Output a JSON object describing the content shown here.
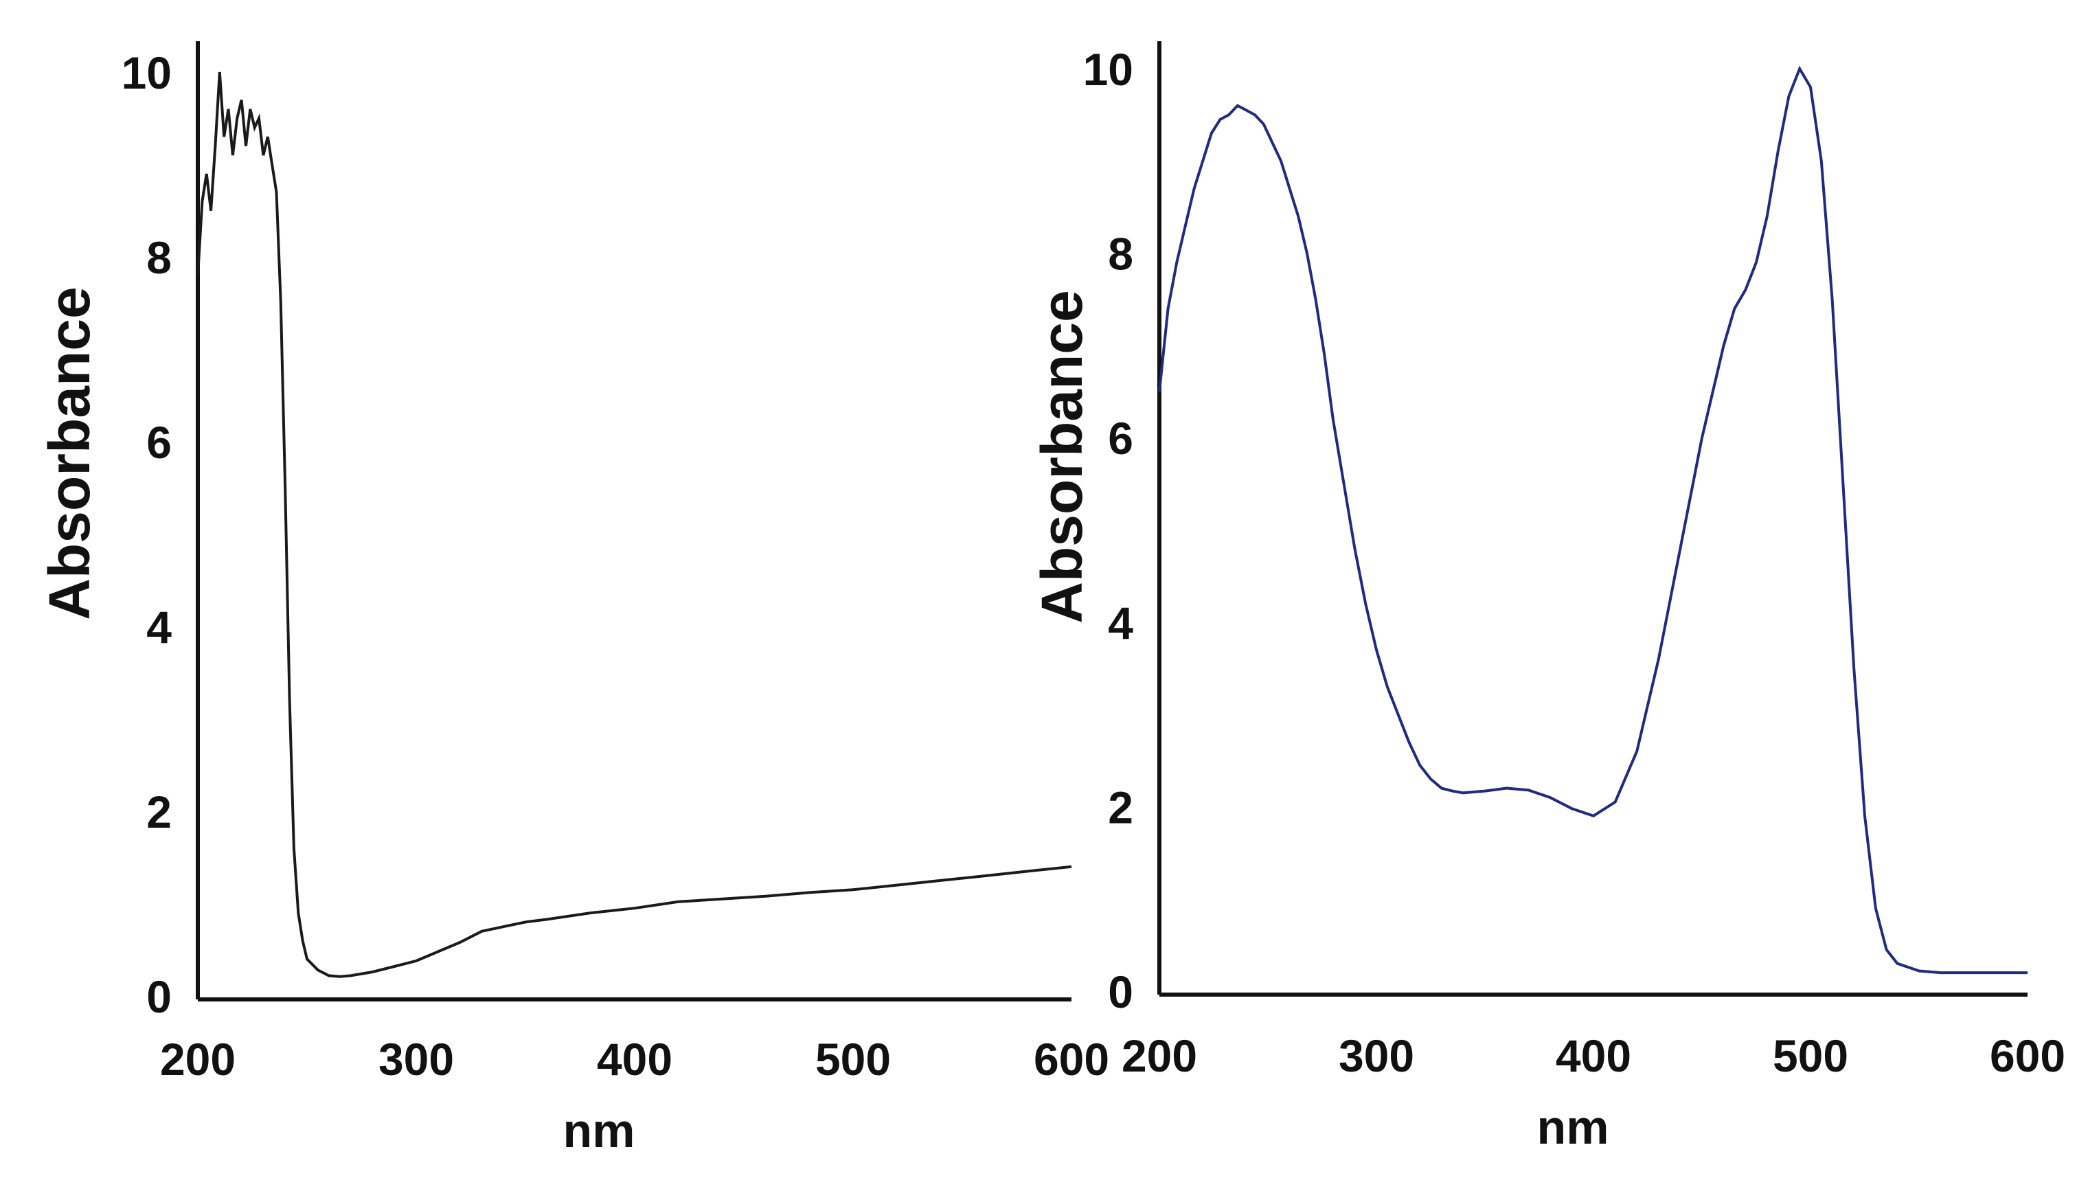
{
  "chart_data": [
    {
      "type": "line",
      "xlabel": "nm",
      "ylabel": "Absorbance",
      "xlim": [
        200,
        600
      ],
      "ylim": [
        0,
        10
      ],
      "xticks": [
        "200",
        "300",
        "400",
        "500",
        "600"
      ],
      "yticks": [
        "0",
        "2",
        "4",
        "6",
        "8",
        "10"
      ],
      "grid": false,
      "color": "#1a1a1a",
      "series": [
        {
          "x": [
            200,
            202,
            204,
            206,
            208,
            210,
            212,
            214,
            216,
            218,
            220,
            222,
            224,
            226,
            228,
            230,
            232,
            234,
            236,
            238,
            240,
            242,
            244,
            246,
            248,
            250,
            255,
            260,
            265,
            270,
            280,
            290,
            300,
            310,
            320,
            330,
            340,
            350,
            360,
            380,
            400,
            420,
            440,
            460,
            480,
            500,
            520,
            540,
            560,
            580,
            600
          ],
          "y": [
            7.8,
            8.6,
            8.9,
            8.5,
            9.2,
            10.0,
            9.3,
            9.6,
            9.1,
            9.5,
            9.7,
            9.2,
            9.6,
            9.4,
            9.5,
            9.1,
            9.3,
            9.0,
            8.7,
            7.5,
            5.5,
            3.2,
            1.6,
            0.9,
            0.6,
            0.4,
            0.28,
            0.22,
            0.21,
            0.22,
            0.26,
            0.32,
            0.38,
            0.48,
            0.58,
            0.7,
            0.75,
            0.8,
            0.83,
            0.9,
            0.95,
            1.02,
            1.05,
            1.08,
            1.12,
            1.15,
            1.2,
            1.25,
            1.3,
            1.35,
            1.4
          ]
        }
      ]
    },
    {
      "type": "line",
      "xlabel": "nm",
      "ylabel": "Absorbance",
      "xlim": [
        200,
        600
      ],
      "ylim": [
        0,
        10
      ],
      "xticks": [
        "200",
        "300",
        "400",
        "500",
        "600"
      ],
      "yticks": [
        "0",
        "2",
        "4",
        "6",
        "8",
        "10"
      ],
      "grid": false,
      "color": "#1f2a80",
      "series": [
        {
          "x": [
            200,
            204,
            208,
            212,
            216,
            220,
            224,
            228,
            232,
            236,
            240,
            244,
            248,
            252,
            256,
            260,
            264,
            268,
            272,
            276,
            280,
            285,
            290,
            295,
            300,
            305,
            310,
            315,
            320,
            325,
            330,
            335,
            340,
            350,
            360,
            370,
            380,
            390,
            400,
            410,
            420,
            430,
            440,
            450,
            460,
            465,
            470,
            475,
            480,
            485,
            490,
            495,
            500,
            505,
            510,
            515,
            520,
            525,
            530,
            535,
            540,
            550,
            560,
            580,
            600
          ],
          "y": [
            6.5,
            7.4,
            7.9,
            8.3,
            8.7,
            9.0,
            9.3,
            9.45,
            9.5,
            9.6,
            9.55,
            9.5,
            9.4,
            9.2,
            9.0,
            8.7,
            8.4,
            8.0,
            7.5,
            6.9,
            6.2,
            5.5,
            4.8,
            4.2,
            3.7,
            3.3,
            3.0,
            2.7,
            2.45,
            2.3,
            2.2,
            2.17,
            2.15,
            2.17,
            2.2,
            2.18,
            2.1,
            1.98,
            1.9,
            2.05,
            2.6,
            3.6,
            4.8,
            6.0,
            7.0,
            7.4,
            7.6,
            7.9,
            8.4,
            9.1,
            9.7,
            10.0,
            9.8,
            9.0,
            7.5,
            5.5,
            3.5,
            1.9,
            0.9,
            0.45,
            0.3,
            0.22,
            0.2,
            0.2,
            0.2
          ]
        }
      ]
    }
  ]
}
